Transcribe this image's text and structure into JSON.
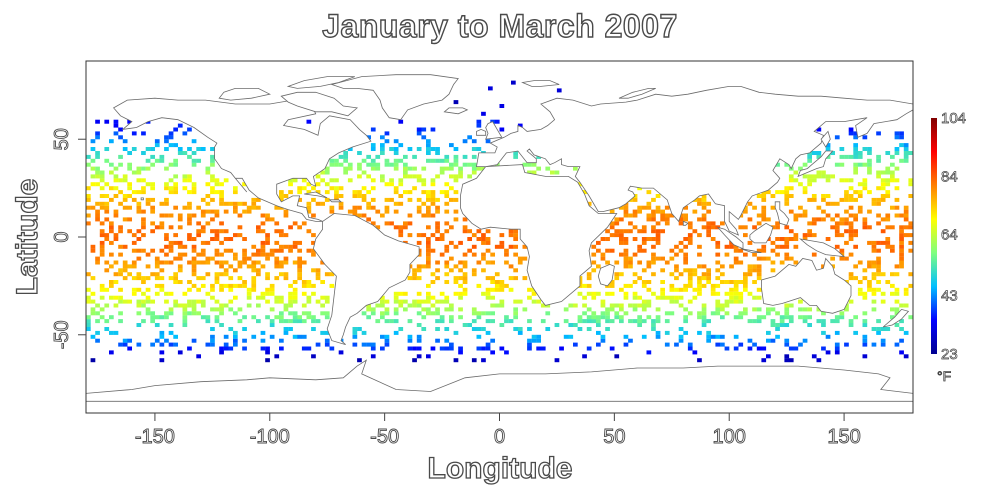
{
  "chart_data": {
    "type": "heatmap",
    "title": "January to March 2007",
    "xlabel": "Longitude",
    "ylabel": "Latitude",
    "xlim": [
      -180,
      180
    ],
    "ylim": [
      -90,
      90
    ],
    "x_ticks": [
      -150,
      -100,
      -50,
      0,
      50,
      100,
      150
    ],
    "y_ticks": [
      -50,
      0,
      50
    ],
    "colorbar": {
      "ticks": [
        23,
        43,
        64,
        84,
        104
      ],
      "range": [
        23,
        104
      ],
      "unit": "°F",
      "colors": [
        "#00008f",
        "#0000ff",
        "#00bfff",
        "#7fff7f",
        "#ffff00",
        "#ff7f00",
        "#ff0000",
        "#7f0000"
      ]
    },
    "grid": false,
    "background_map": "world country outlines",
    "zonal_temperature_profile": {
      "latitude": [
        -62,
        -55,
        -45,
        -35,
        -25,
        -15,
        -5,
        5,
        15,
        25,
        35,
        45,
        55
      ],
      "temperature": [
        28,
        40,
        52,
        63,
        72,
        78,
        82,
        82,
        78,
        70,
        60,
        48,
        36
      ]
    }
  }
}
